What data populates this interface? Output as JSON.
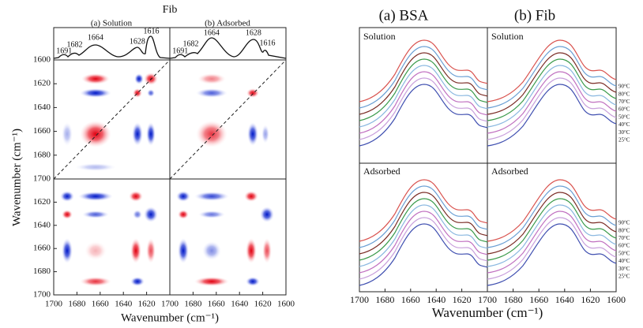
{
  "chart_data": [
    {
      "type": "contour",
      "title": "Fib",
      "panel_titles": [
        "(a) Solution",
        "(b) Adsorbed"
      ],
      "peak_labels": [
        [
          1691,
          1682,
          1664,
          1628,
          1616
        ],
        [
          1691,
          1682,
          1664,
          1628,
          1616
        ]
      ],
      "xlim": [
        1700,
        1600
      ],
      "ylim": [
        1600,
        1700
      ],
      "xticks": [
        [
          1700,
          1680,
          1660,
          1640,
          1620
        ],
        [
          1700,
          1680,
          1660,
          1640,
          1620,
          1600
        ]
      ],
      "yticks": [
        [
          1600,
          1620,
          1640,
          1660,
          1680,
          1700
        ],
        [
          1620,
          1640,
          1660,
          1680,
          1700
        ]
      ],
      "x_label": "Wavenumber (cm⁻¹)",
      "y_label": "Wavenumber (cm⁻¹)"
    },
    {
      "type": "line",
      "panel_titles": [
        "(a) BSA",
        "(b) Fib"
      ],
      "row_labels": [
        "Solution",
        "Adsorbed"
      ],
      "series": [
        {
          "name": "90°C",
          "color": "#d9534f"
        },
        {
          "name": "80°C",
          "color": "#6a9fd4"
        },
        {
          "name": "70°C",
          "color": "#7b2d26"
        },
        {
          "name": "60°C",
          "color": "#3a9a4a"
        },
        {
          "name": "50°C",
          "color": "#8ab8e0"
        },
        {
          "name": "40°C",
          "color": "#c070c0"
        },
        {
          "name": "30°C",
          "color": "#c9a0dc"
        },
        {
          "name": "25°C",
          "color": "#3f4fb0"
        }
      ],
      "xlim": [
        1700,
        1600
      ],
      "xticks": [
        [
          1700,
          1680,
          1660,
          1640,
          1620
        ],
        [
          1700,
          1680,
          1660,
          1640,
          1620,
          1600
        ]
      ],
      "x_label": "Wavenumber (cm⁻¹)"
    }
  ]
}
